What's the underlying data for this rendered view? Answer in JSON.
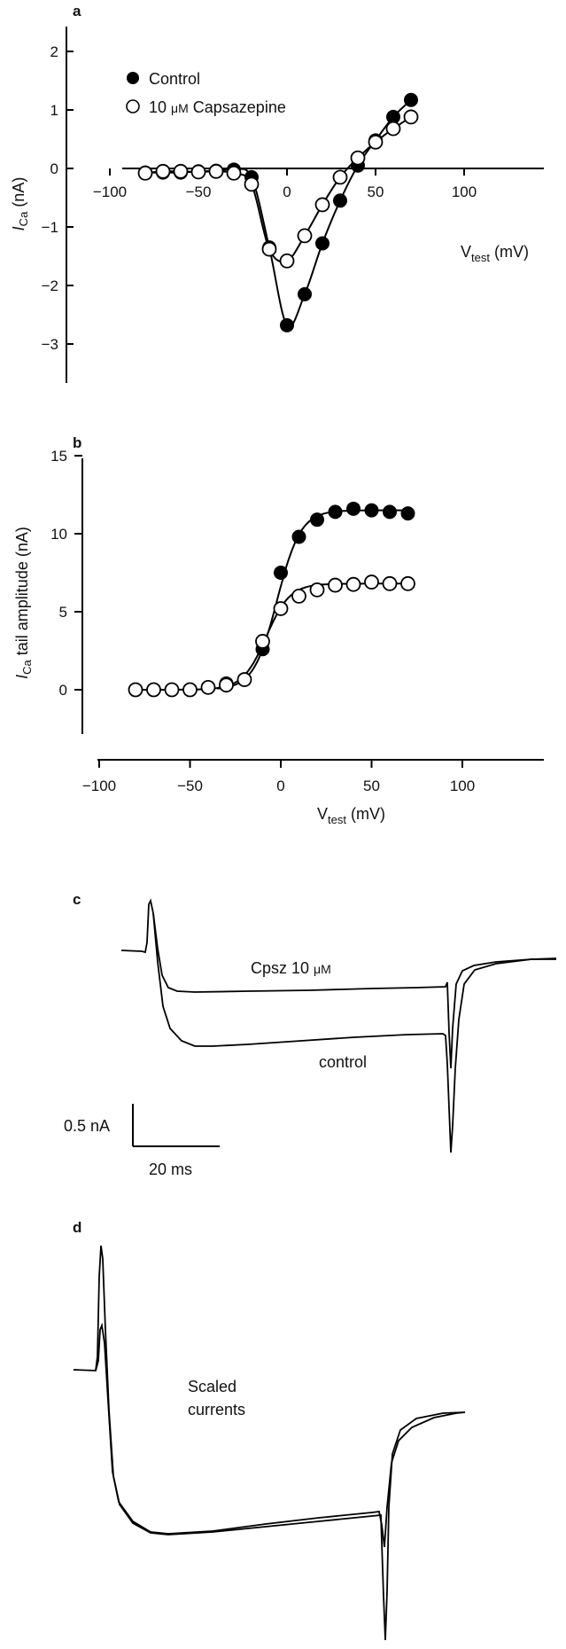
{
  "chart_data": [
    {
      "panel": "a",
      "type": "scatter",
      "xlabel": "V_test (mV)",
      "ylabel": "I_Ca (nA)",
      "xlim": [
        -100,
        100
      ],
      "ylim": [
        -3,
        2
      ],
      "xticks": [
        "−100",
        "−50",
        "0",
        "50",
        "100"
      ],
      "yticks": [
        "2",
        "1",
        "0",
        "−1",
        "−2",
        "−3"
      ],
      "legend_position": "top-left",
      "series": [
        {
          "name": "Control",
          "marker": "filled-circle",
          "x": [
            -80,
            -70,
            -60,
            -50,
            -40,
            -30,
            -20,
            -10,
            0,
            10,
            20,
            30,
            40,
            50,
            60,
            70
          ],
          "y": [
            -0.07,
            -0.07,
            -0.07,
            -0.05,
            -0.04,
            -0.02,
            -0.15,
            -1.35,
            -2.68,
            -2.15,
            -1.28,
            -0.55,
            0.05,
            0.48,
            0.88,
            1.17
          ]
        },
        {
          "name": "10 μM Capsazepine",
          "marker": "open-circle",
          "x": [
            -80,
            -70,
            -60,
            -50,
            -40,
            -30,
            -20,
            -10,
            0,
            10,
            20,
            30,
            40,
            50,
            60,
            70
          ],
          "y": [
            -0.08,
            -0.05,
            -0.05,
            -0.06,
            -0.05,
            -0.08,
            -0.27,
            -1.38,
            -1.58,
            -1.15,
            -0.62,
            -0.15,
            0.18,
            0.45,
            0.68,
            0.88
          ]
        }
      ]
    },
    {
      "panel": "b",
      "type": "scatter",
      "xlabel": "V_test (mV)",
      "ylabel": "I_Ca tail amplitude (nA)",
      "xlim": [
        -100,
        100
      ],
      "ylim": [
        0,
        15
      ],
      "xticks": [
        "−100",
        "−50",
        "0",
        "50",
        "100"
      ],
      "yticks": [
        "15",
        "10",
        "5",
        "0"
      ],
      "series": [
        {
          "marker": "filled-circle",
          "x": [
            -30,
            -10,
            0,
            10,
            20,
            30,
            40,
            50,
            60,
            70
          ],
          "y": [
            0.4,
            2.6,
            7.5,
            9.8,
            10.9,
            11.4,
            11.6,
            11.5,
            11.4,
            11.3
          ]
        },
        {
          "marker": "open-circle",
          "x": [
            -80,
            -70,
            -60,
            -50,
            -40,
            -30,
            -20,
            -10,
            0,
            10,
            20,
            30,
            40,
            50,
            60,
            70
          ],
          "y": [
            0,
            0,
            0,
            0,
            0.15,
            0.3,
            0.65,
            3.1,
            5.2,
            6.0,
            6.4,
            6.7,
            6.75,
            6.9,
            6.8,
            6.8
          ]
        }
      ]
    },
    {
      "panel": "c",
      "type": "line",
      "trace_labels": [
        "Cpsz 10 μM",
        "control"
      ],
      "scale_bar": {
        "current": "0.5 nA",
        "time": "20 ms"
      }
    },
    {
      "panel": "d",
      "type": "line",
      "annotation": [
        "Scaled",
        "currents"
      ]
    }
  ],
  "text": {
    "panel_a": "a",
    "panel_b": "b",
    "panel_c": "c",
    "panel_d": "d",
    "a_ylabel_main": "I",
    "a_ylabel_sub": "Ca",
    "a_ylabel_unit": " (nA)",
    "b_ylabel_main": "I",
    "b_ylabel_sub": "Ca",
    "b_ylabel_unit": " tail amplitude (nA)",
    "v_main": "V",
    "v_sub": "test",
    "v_unit": " (mV)",
    "legend_control": "Control",
    "legend_cpsz_num": "10 ",
    "legend_cpsz_unit": "μM",
    "legend_cpsz_name": " Capsazepine",
    "c_label_top": "Cpsz 10 ",
    "c_label_top_unit": "μM",
    "c_label_bottom": "control",
    "scale_current": "0.5 nA",
    "scale_time": "20 ms",
    "d_anno_1": "Scaled",
    "d_anno_2": "currents"
  }
}
